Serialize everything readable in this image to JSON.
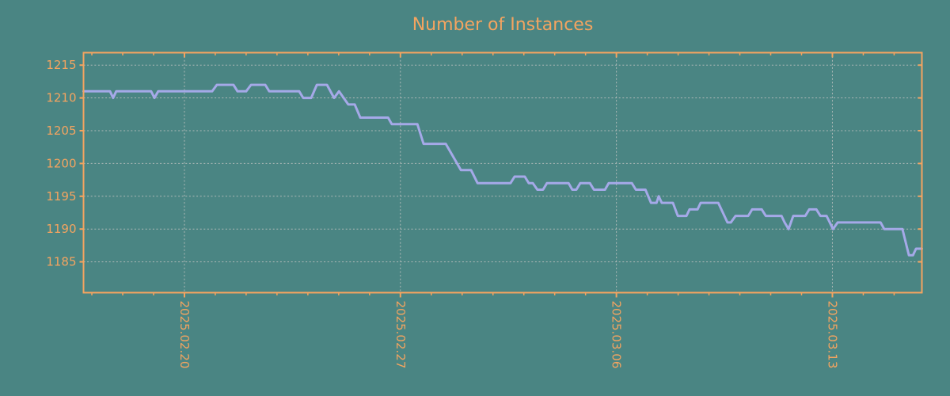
{
  "title": "Number of Instances",
  "colors": {
    "background": "#4a8583",
    "accent": "#f4a460",
    "line": "#a5a9e8",
    "grid": "#aeb9b7"
  },
  "chart_data": {
    "type": "line",
    "title": "Number of Instances",
    "xlabel": "",
    "ylabel": "",
    "grid": true,
    "legend": "none",
    "xlim_days": [
      0,
      27.17
    ],
    "ylim": [
      1180.3,
      1216.9
    ],
    "y_ticks": [
      {
        "value": 1185,
        "label": "1185"
      },
      {
        "value": 1190,
        "label": "1190"
      },
      {
        "value": 1195,
        "label": "1195"
      },
      {
        "value": 1200,
        "label": "1200"
      },
      {
        "value": 1205,
        "label": "1205"
      },
      {
        "value": 1210,
        "label": "1210"
      },
      {
        "value": 1215,
        "label": "1215"
      }
    ],
    "x_ticks": [
      {
        "day": 3.27,
        "label": "2025.02.20"
      },
      {
        "day": 10.27,
        "label": "2025.02.27"
      },
      {
        "day": 17.27,
        "label": "2025.03.06"
      },
      {
        "day": 24.27,
        "label": "2025.03.13"
      }
    ],
    "x_minor_ticks": {
      "start_day": 0.27,
      "step_days": 1,
      "count": 27
    },
    "series": [
      {
        "name": "instances",
        "points": [
          [
            0.0,
            1211
          ],
          [
            0.86,
            1211
          ],
          [
            0.96,
            1210
          ],
          [
            1.06,
            1211
          ],
          [
            2.19,
            1211
          ],
          [
            2.3,
            1210
          ],
          [
            2.42,
            1211
          ],
          [
            4.17,
            1211
          ],
          [
            4.32,
            1212
          ],
          [
            4.86,
            1212
          ],
          [
            4.99,
            1211
          ],
          [
            5.27,
            1211
          ],
          [
            5.43,
            1212
          ],
          [
            5.89,
            1212
          ],
          [
            6.02,
            1211
          ],
          [
            6.99,
            1211
          ],
          [
            7.12,
            1210
          ],
          [
            7.38,
            1210
          ],
          [
            7.56,
            1212
          ],
          [
            7.89,
            1212
          ],
          [
            8.12,
            1210
          ],
          [
            8.28,
            1211
          ],
          [
            8.43,
            1210
          ],
          [
            8.58,
            1209
          ],
          [
            8.79,
            1209
          ],
          [
            8.97,
            1207
          ],
          [
            9.87,
            1207
          ],
          [
            9.99,
            1206
          ],
          [
            10.82,
            1206
          ],
          [
            11.02,
            1203
          ],
          [
            11.74,
            1203
          ],
          [
            12.23,
            1199
          ],
          [
            12.56,
            1199
          ],
          [
            12.77,
            1197
          ],
          [
            13.84,
            1197
          ],
          [
            13.97,
            1198
          ],
          [
            14.3,
            1198
          ],
          [
            14.43,
            1197
          ],
          [
            14.56,
            1197
          ],
          [
            14.71,
            1196
          ],
          [
            14.89,
            1196
          ],
          [
            15.02,
            1197
          ],
          [
            15.72,
            1197
          ],
          [
            15.84,
            1196
          ],
          [
            15.97,
            1196
          ],
          [
            16.1,
            1197
          ],
          [
            16.41,
            1197
          ],
          [
            16.54,
            1196
          ],
          [
            16.9,
            1196
          ],
          [
            17.02,
            1197
          ],
          [
            17.77,
            1197
          ],
          [
            17.9,
            1196
          ],
          [
            18.21,
            1196
          ],
          [
            18.39,
            1194
          ],
          [
            18.57,
            1194
          ],
          [
            18.64,
            1195
          ],
          [
            18.74,
            1194
          ],
          [
            19.1,
            1194
          ],
          [
            19.26,
            1192
          ],
          [
            19.54,
            1192
          ],
          [
            19.64,
            1193
          ],
          [
            19.9,
            1193
          ],
          [
            20.0,
            1194
          ],
          [
            20.57,
            1194
          ],
          [
            20.87,
            1191
          ],
          [
            20.98,
            1191
          ],
          [
            21.13,
            1192
          ],
          [
            21.54,
            1192
          ],
          [
            21.67,
            1193
          ],
          [
            21.98,
            1193
          ],
          [
            22.11,
            1192
          ],
          [
            22.62,
            1192
          ],
          [
            22.72,
            1191
          ],
          [
            22.85,
            1190
          ],
          [
            23.0,
            1192
          ],
          [
            23.39,
            1192
          ],
          [
            23.52,
            1193
          ],
          [
            23.75,
            1193
          ],
          [
            23.88,
            1192
          ],
          [
            24.08,
            1192
          ],
          [
            24.29,
            1190
          ],
          [
            24.44,
            1191
          ],
          [
            25.83,
            1191
          ],
          [
            25.95,
            1190
          ],
          [
            26.54,
            1190
          ],
          [
            26.75,
            1186
          ],
          [
            26.88,
            1186
          ],
          [
            26.98,
            1187
          ],
          [
            27.17,
            1187
          ]
        ]
      }
    ]
  }
}
